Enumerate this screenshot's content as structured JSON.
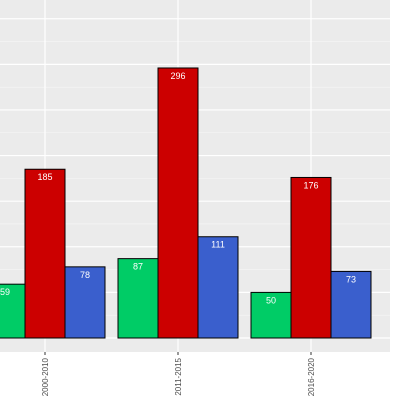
{
  "chart_data": {
    "type": "bar",
    "title": "",
    "xlabel": "",
    "ylabel": "",
    "categories": [
      "2000-2010",
      "2011-2015",
      "2016-2020"
    ],
    "series": [
      {
        "color": "#00cc66",
        "values": [
          59,
          87,
          50
        ]
      },
      {
        "color": "#cc0000",
        "values": [
          185,
          296,
          176
        ]
      },
      {
        "color": "#3a5fcd",
        "values": [
          78,
          111,
          73
        ]
      }
    ],
    "ylim": [
      0,
      300
    ],
    "grid": true,
    "legend": "none",
    "colors": {
      "panel_background": "#ebebeb",
      "grid": "#ffffff",
      "bar_outline": "#000000",
      "label_text": "#ffffff"
    }
  }
}
